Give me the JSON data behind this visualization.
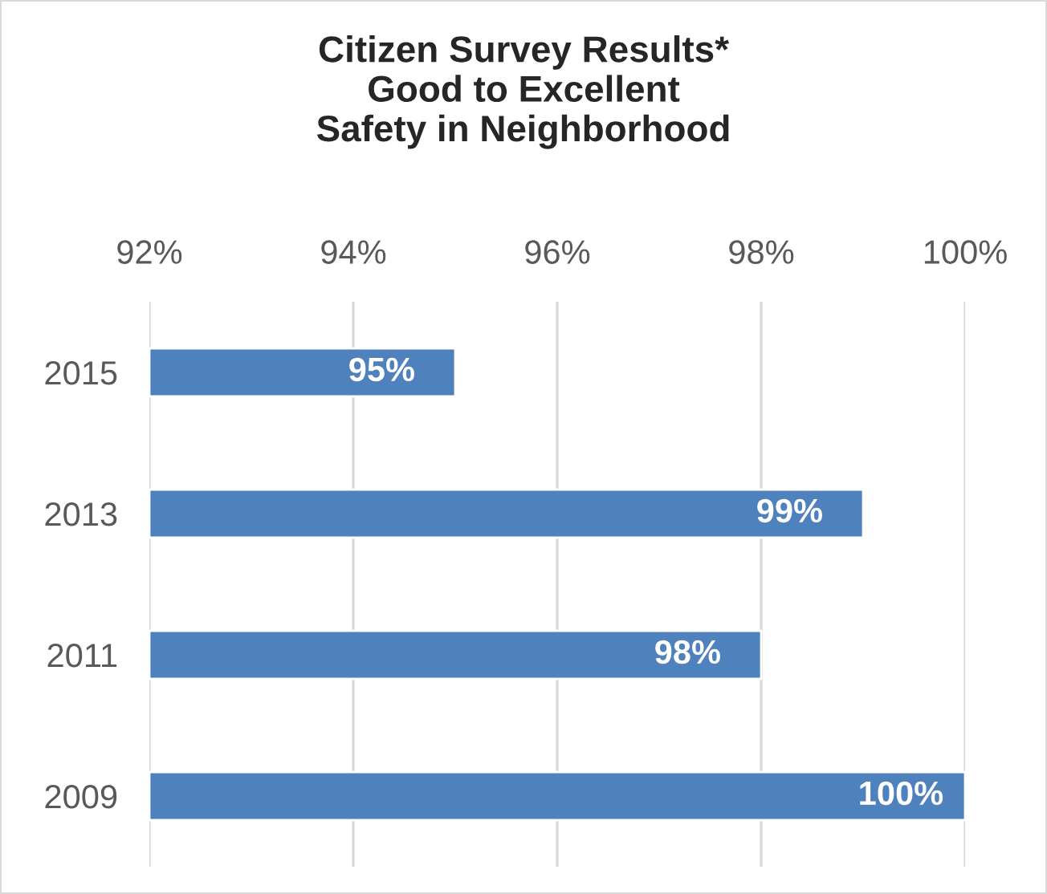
{
  "chart_data": {
    "type": "bar",
    "orientation": "horizontal",
    "title": "Citizen Survey Results*\nGood to Excellent\nSafety in Neighborhood",
    "categories": [
      "2015",
      "2013",
      "2011",
      "2009"
    ],
    "series": [
      {
        "color": "#4f81bd",
        "values": [
          95,
          99,
          98,
          100
        ]
      }
    ],
    "value_labels": [
      "95%",
      "99%",
      "98%",
      "100%"
    ],
    "xlim": [
      92,
      100
    ],
    "xticks": [
      {
        "value": 92,
        "label": "92%"
      },
      {
        "value": 94,
        "label": "94%"
      },
      {
        "value": 96,
        "label": "96%"
      },
      {
        "value": 98,
        "label": "98%"
      },
      {
        "value": 100,
        "label": "100%"
      }
    ],
    "grid": "x",
    "legend": false
  }
}
